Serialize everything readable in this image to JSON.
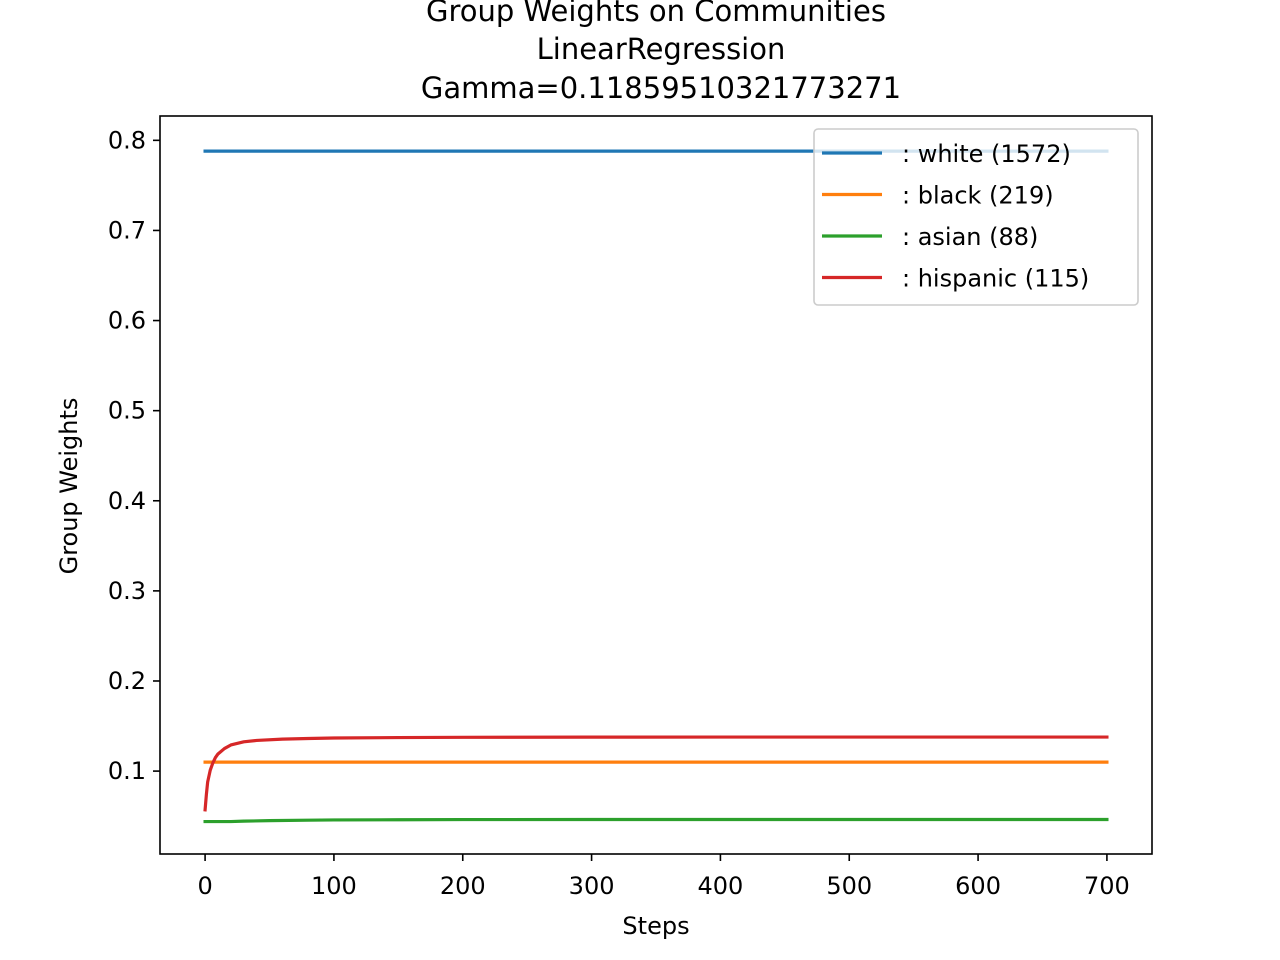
{
  "chart_data": {
    "type": "line",
    "title_lines": [
      "Group Weights on Communities",
      "LinearRegression",
      "Gamma=0.11859510321773271"
    ],
    "xlabel": "Steps",
    "ylabel": "Group Weights",
    "xlim": [
      -35,
      735
    ],
    "ylim": [
      0.008,
      0.827
    ],
    "xticks": [
      0,
      100,
      200,
      300,
      400,
      500,
      600,
      700
    ],
    "yticks": [
      0.1,
      0.2,
      0.3,
      0.4,
      0.5,
      0.6,
      0.7,
      0.8
    ],
    "grid": false,
    "legend_position": "top-right",
    "series": [
      {
        "name": ": white  (1572)",
        "color": "#1f77b4",
        "x": [
          0,
          700
        ],
        "y": [
          0.788,
          0.788
        ]
      },
      {
        "name": ": black  (219)",
        "color": "#ff7f0e",
        "x": [
          0,
          700
        ],
        "y": [
          0.11,
          0.11
        ]
      },
      {
        "name": ": asian  (88)",
        "color": "#2ca02c",
        "x": [
          0,
          10,
          20,
          30,
          50,
          80,
          100,
          150,
          200,
          300,
          400,
          500,
          600,
          700
        ],
        "y": [
          0.044,
          0.044,
          0.044,
          0.0445,
          0.045,
          0.0455,
          0.0458,
          0.046,
          0.0462,
          0.0463,
          0.0463,
          0.0463,
          0.0463,
          0.0463
        ]
      },
      {
        "name": ": hispanic  (115)",
        "color": "#d62728",
        "x": [
          0,
          1,
          2,
          4,
          6,
          8,
          10,
          15,
          20,
          30,
          40,
          60,
          80,
          100,
          150,
          200,
          300,
          400,
          500,
          600,
          700
        ],
        "y": [
          0.057,
          0.074,
          0.088,
          0.101,
          0.109,
          0.115,
          0.119,
          0.125,
          0.129,
          0.1325,
          0.134,
          0.1355,
          0.1362,
          0.1367,
          0.1372,
          0.1375,
          0.1377,
          0.1378,
          0.1378,
          0.1378,
          0.1378
        ]
      }
    ]
  }
}
